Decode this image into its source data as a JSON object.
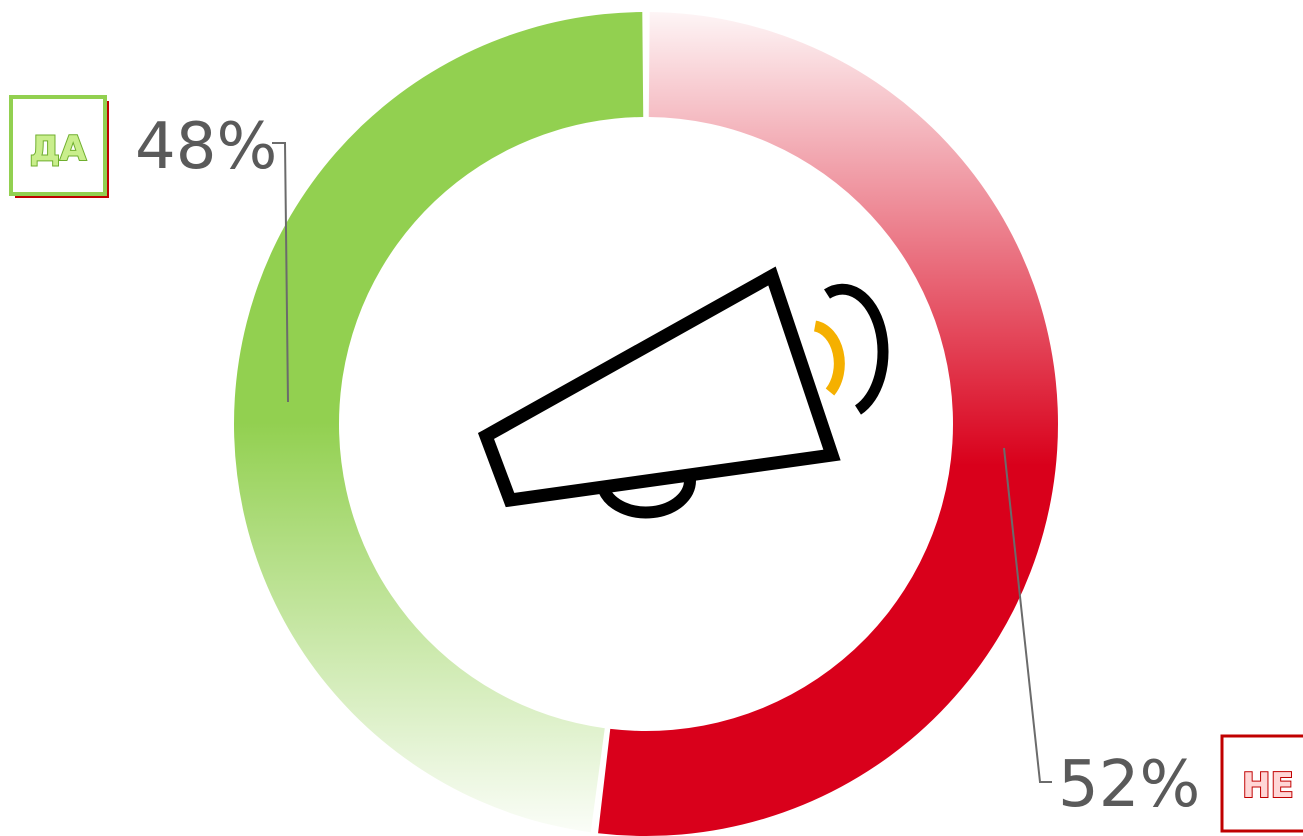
{
  "chart_data": {
    "type": "pie",
    "variant": "donut",
    "title": "",
    "categories": [
      "ДА",
      "НЕ"
    ],
    "values": [
      48,
      52
    ],
    "labels": [
      "48%",
      "52%"
    ],
    "colors": [
      "#92d050",
      "#d9001b"
    ],
    "legend_placement": "beside-labels",
    "center_icon": "megaphone-icon",
    "icon_accent": "#f5b000"
  }
}
